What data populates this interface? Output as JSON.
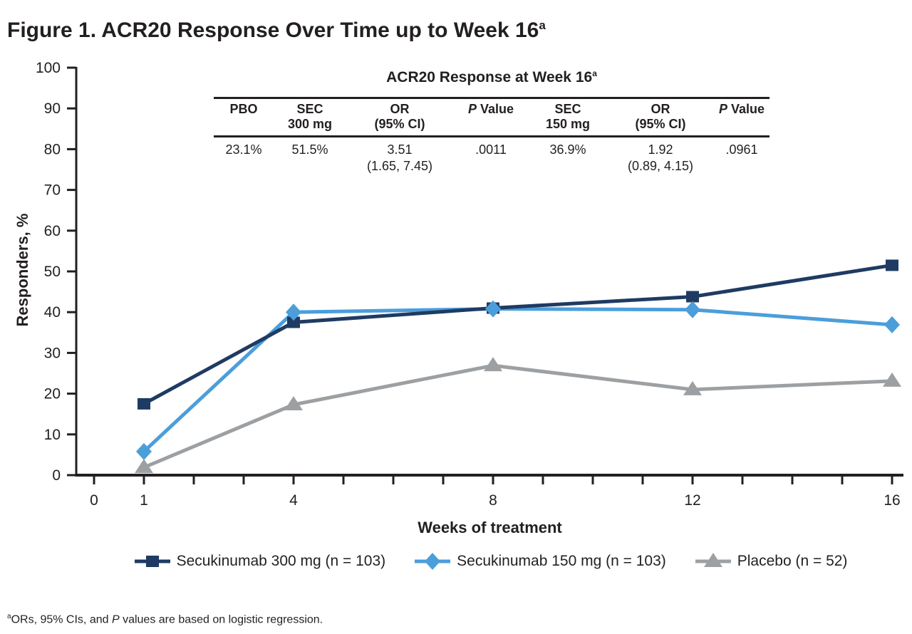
{
  "figure_title": {
    "text": "Figure 1. ACR20 Response Over Time up to Week 16",
    "sup": "a"
  },
  "inset_table": {
    "title": {
      "text": "ACR20 Response at Week 16",
      "sup": "a"
    },
    "headers": [
      "PBO",
      "SEC\n300 mg",
      "OR\n(95% CI)",
      "*P* Value",
      "SEC\n150 mg",
      "OR\n(95% CI)",
      "*P* Value"
    ],
    "values": [
      "23.1%",
      "51.5%",
      "3.51\n(1.65, 7.45)",
      ".0011",
      "36.9%",
      "1.92\n(0.89, 4.15)",
      ".0961"
    ]
  },
  "chart_data": {
    "type": "line",
    "title": "Figure 1. ACR20 Response Over Time up to Week 16 (a)",
    "x": [
      1,
      4,
      8,
      12,
      16
    ],
    "series": [
      {
        "name": "Secukinumab 300 mg (n = 103)",
        "marker": "square",
        "color": "#1f3b63",
        "values": [
          17.5,
          37.5,
          41.0,
          43.8,
          51.5
        ]
      },
      {
        "name": "Secukinumab 150 mg (n = 103)",
        "marker": "diamond",
        "color": "#4b9eda",
        "values": [
          5.8,
          40.0,
          40.8,
          40.6,
          36.9
        ]
      },
      {
        "name": "Placebo (n = 52)",
        "marker": "triangle",
        "color": "#9da0a3",
        "values": [
          1.9,
          17.3,
          26.9,
          21.0,
          23.1
        ]
      }
    ],
    "xlabel": "Weeks of treatment",
    "ylabel": "Responders, %",
    "xlim": [
      0,
      16
    ],
    "ylim": [
      0,
      100
    ],
    "yticks": [
      0,
      10,
      20,
      30,
      40,
      50,
      60,
      70,
      80,
      90,
      100
    ],
    "xticks_minor": [
      0,
      1,
      2,
      3,
      4,
      5,
      6,
      7,
      8,
      9,
      10,
      11,
      12,
      13,
      14,
      15,
      16
    ],
    "xtick_labels": [
      0,
      1,
      4,
      8,
      12,
      16
    ],
    "grid": "off",
    "legend_position": "bottom",
    "axis_color": "#231f20"
  },
  "footnote": {
    "sup": "a",
    "text": "ORs, 95% CIs, and *P* values are based on logistic regression."
  }
}
